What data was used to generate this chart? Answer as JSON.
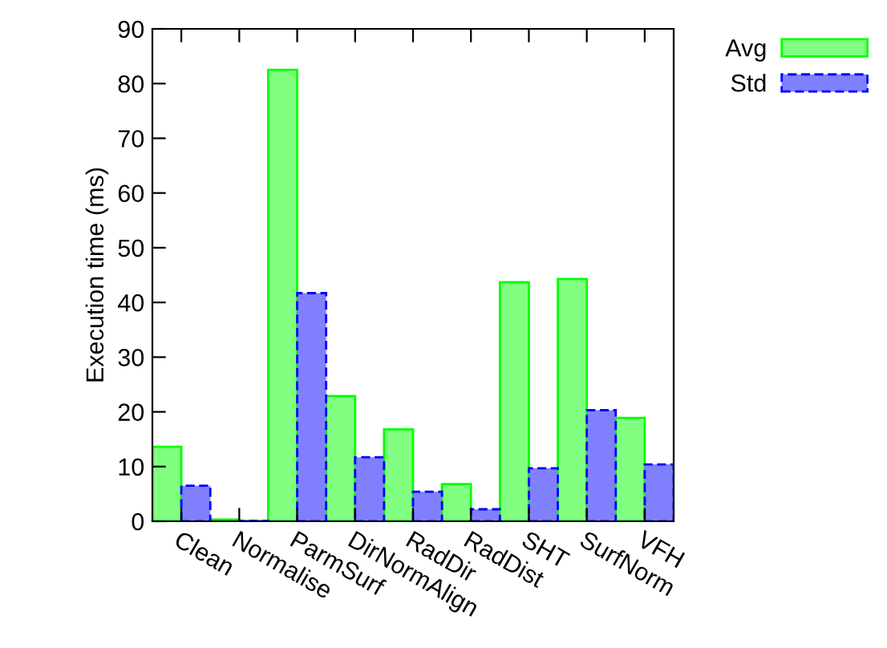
{
  "chart_data": {
    "type": "bar",
    "ylabel": "Execution time (ms)",
    "categories": [
      "Clean",
      "Normalise",
      "ParmSurf",
      "DirNormAlign",
      "RadDir",
      "RadDist",
      "SHT",
      "SurfNorm",
      "VFH"
    ],
    "series": [
      {
        "name": "Avg",
        "color": "#80ff80",
        "line_style": "solid",
        "values": [
          13.6,
          0.3,
          82.5,
          22.9,
          16.8,
          6.8,
          43.7,
          44.3,
          18.9
        ]
      },
      {
        "name": "Std",
        "color": "#8080ff",
        "line_style": "dashed",
        "values": [
          6.5,
          0.1,
          41.7,
          11.7,
          5.4,
          2.2,
          9.7,
          20.3,
          10.4
        ]
      }
    ],
    "ylim": [
      0,
      90
    ],
    "yticks": [
      0,
      10,
      20,
      30,
      40,
      50,
      60,
      70,
      80,
      90
    ],
    "grid": false,
    "legend": "top right"
  }
}
